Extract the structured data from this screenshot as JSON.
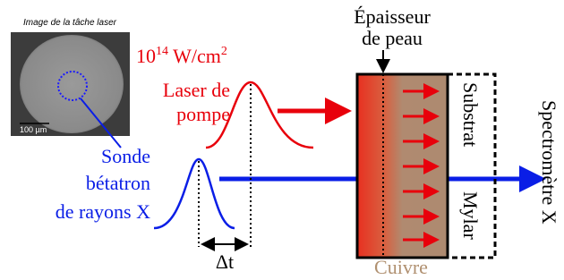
{
  "inset": {
    "title": "Image de la tâche laser",
    "scale": "100 µm"
  },
  "pump": {
    "intensity_base": "10",
    "intensity_exponent": "14",
    "intensity_unit": " W/cm",
    "intensity_unit_exponent": "2",
    "label_line1": "Laser de",
    "label_line2": "pompe"
  },
  "probe": {
    "line1": "Sonde",
    "line2": "bétatron",
    "line3": "de rayons X"
  },
  "delay": "Δt",
  "skin": {
    "line1": "Épaisseur",
    "line2": "de peau"
  },
  "target": {
    "copper": "Cuivre",
    "substrate": "Substrat",
    "mylar": "Mylar"
  },
  "detector": "Spectromètre X"
}
